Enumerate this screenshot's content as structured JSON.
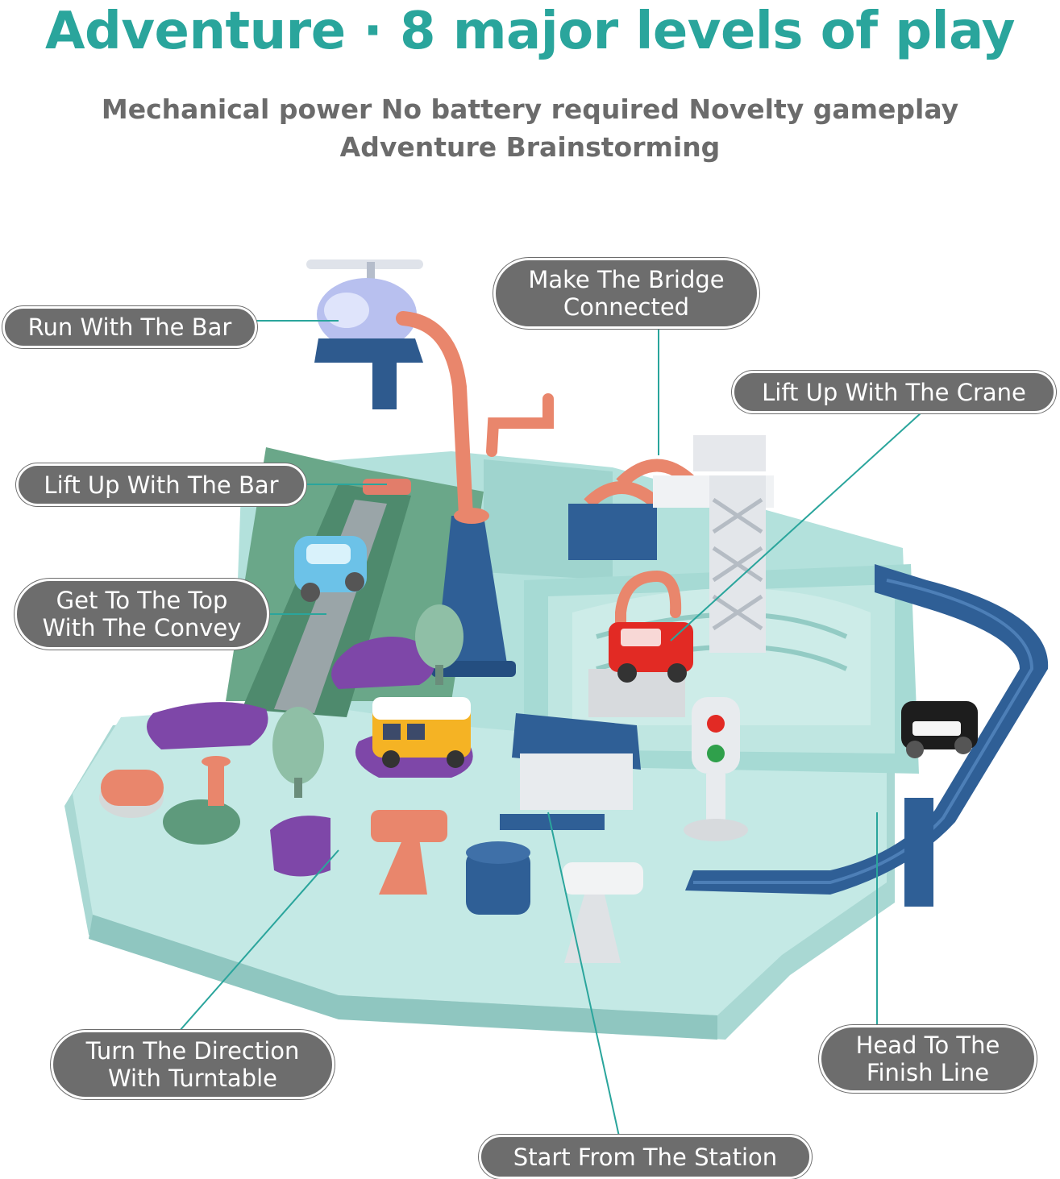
{
  "header": {
    "title": "Adventure · 8 major levels of play",
    "subtitle_line1": "Mechanical power No battery required Novelty gameplay",
    "subtitle_line2": "Adventure Brainstorming"
  },
  "callouts": {
    "run_with_bar": "Run With The Bar",
    "bridge_line1": "Make The Bridge",
    "bridge_line2": "Connected",
    "crane": "Lift Up With The Crane",
    "lift_bar": "Lift Up With The Bar",
    "top_line1": "Get To The Top",
    "top_line2": "With The Convey",
    "turntable_line1": "Turn The Direction",
    "turntable_line2": "With Turntable",
    "finish_line1": "Head To The",
    "finish_line2": "Finish Line",
    "station": "Start From The Station"
  },
  "colors": {
    "title": "#2aa59c",
    "subtitle": "#6b6b6b",
    "callout_bg": "#6d6d6d",
    "leader_line": "#2aa59c",
    "board": "#bfe6e2",
    "track_blue": "#2f5f96",
    "ramp_green": "#5e9a7c",
    "pipe_salmon": "#e9866c"
  },
  "icons": [
    "helicopter-icon",
    "crane-icon",
    "bridge-icon",
    "traffic-light-icon",
    "bus-icon",
    "police-car-icon",
    "fire-car-icon",
    "blue-car-icon",
    "tree-icon",
    "station-icon"
  ]
}
